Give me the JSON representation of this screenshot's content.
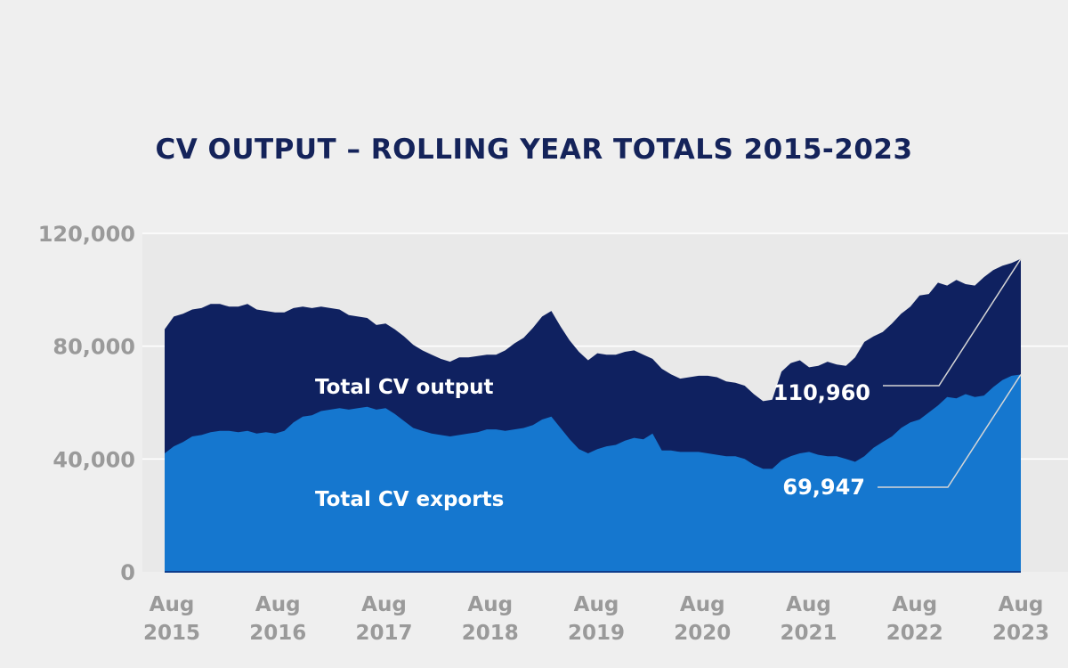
{
  "chart_data": {
    "type": "area",
    "title": "CV OUTPUT – ROLLING YEAR TOTALS 2015-2023",
    "xlabel": "",
    "ylabel": "",
    "ylim": [
      0,
      120000
    ],
    "yticks": [
      0,
      40000,
      80000,
      120000
    ],
    "ytick_labels": [
      "0",
      "40,000",
      "80,000",
      "120,000"
    ],
    "xticks": [
      {
        "month": "Aug",
        "year": "2015"
      },
      {
        "month": "Aug",
        "year": "2016"
      },
      {
        "month": "Aug",
        "year": "2017"
      },
      {
        "month": "Aug",
        "year": "2018"
      },
      {
        "month": "Aug",
        "year": "2019"
      },
      {
        "month": "Aug",
        "year": "2020"
      },
      {
        "month": "Aug",
        "year": "2021"
      },
      {
        "month": "Aug",
        "year": "2022"
      },
      {
        "month": "Aug",
        "year": "2023"
      }
    ],
    "grid": true,
    "x_start": "Aug 2015",
    "x_end": "Aug 2023",
    "series": [
      {
        "name": "Total CV output",
        "color": "#0f2160",
        "values": [
          86000,
          90500,
          91500,
          93000,
          93500,
          95000,
          95000,
          94000,
          94000,
          95000,
          93000,
          92500,
          92000,
          92000,
          93500,
          94000,
          93500,
          94000,
          93500,
          93000,
          91000,
          90500,
          90000,
          87500,
          88000,
          86000,
          83500,
          80500,
          78500,
          77000,
          75500,
          74500,
          76000,
          76000,
          76500,
          77000,
          77000,
          78500,
          81000,
          83000,
          86500,
          90500,
          92500,
          87000,
          82000,
          78000,
          75000,
          77500,
          77000,
          77000,
          78000,
          78500,
          77000,
          75500,
          72000,
          70000,
          68500,
          69000,
          69500,
          69500,
          69000,
          67500,
          67000,
          66000,
          63000,
          60500,
          61000,
          71000,
          74000,
          75000,
          72500,
          73000,
          74500,
          73500,
          73000,
          76000,
          81500,
          83500,
          85000,
          88000,
          91500,
          94000,
          98000,
          98500,
          102500,
          101500,
          103500,
          102000,
          101500,
          104500,
          107000,
          108500,
          109500,
          110960
        ]
      },
      {
        "name": "Total CV exports",
        "color": "#1577cf",
        "values": [
          42000,
          44500,
          46000,
          48000,
          48500,
          49500,
          50000,
          50000,
          49500,
          50000,
          49000,
          49500,
          49000,
          50000,
          53000,
          55000,
          55500,
          57000,
          57500,
          58000,
          57500,
          58000,
          58500,
          57500,
          58000,
          56000,
          53500,
          51000,
          50000,
          49000,
          48500,
          48000,
          48500,
          49000,
          49500,
          50500,
          50500,
          50000,
          50500,
          51000,
          52000,
          54000,
          55000,
          51000,
          47000,
          43500,
          42000,
          43500,
          44500,
          45000,
          46500,
          47500,
          47000,
          49000,
          43000,
          43000,
          42500,
          42500,
          42500,
          42000,
          41500,
          41000,
          41000,
          40000,
          38000,
          36500,
          36500,
          39500,
          41000,
          42000,
          42500,
          41500,
          41000,
          41000,
          40000,
          39000,
          41000,
          44000,
          46000,
          48000,
          51000,
          53000,
          54000,
          56500,
          59000,
          62000,
          61500,
          63000,
          62000,
          62500,
          65500,
          68000,
          69500,
          69947
        ]
      }
    ],
    "annotations": [
      {
        "text": "110,960",
        "series": "Total CV output"
      },
      {
        "text": "69,947",
        "series": "Total CV exports"
      }
    ],
    "series_labels": [
      "Total CV output",
      "Total CV exports"
    ]
  }
}
